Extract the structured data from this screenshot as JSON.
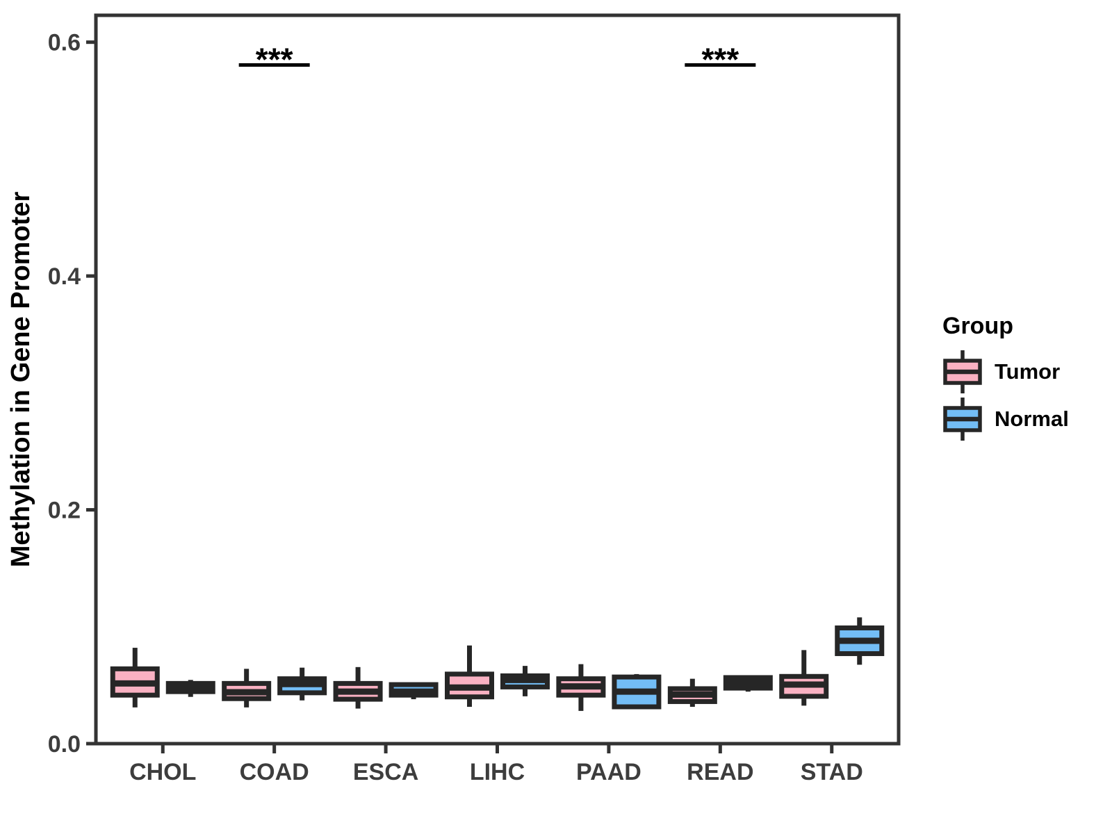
{
  "figure": {
    "background": "#ffffff"
  },
  "legend": {
    "title": "Group",
    "entries": [
      {
        "label": "Tumor",
        "color": "#F9B1C2"
      },
      {
        "label": "Normal",
        "color": "#73BDF5"
      }
    ]
  },
  "chart_data": {
    "type": "box",
    "title": "",
    "xlabel": "",
    "ylabel": "Methylation in Gene Promoter",
    "categories": [
      "CHOL",
      "COAD",
      "ESCA",
      "LIHC",
      "PAAD",
      "READ",
      "STAD"
    ],
    "ylim": [
      0,
      0.623
    ],
    "yticks": [
      0.0,
      0.2,
      0.4,
      0.6
    ],
    "ytick_labels": [
      "0.0",
      "0.2",
      "0.4",
      "0.6"
    ],
    "grid": false,
    "legend_position": "right",
    "series": [
      {
        "name": "Tumor",
        "color": "#F9B1C2",
        "boxes": [
          {
            "category": "CHOL",
            "low": 0.031,
            "q1": 0.0415,
            "median": 0.0515,
            "q3": 0.064,
            "high": 0.082
          },
          {
            "category": "COAD",
            "low": 0.031,
            "q1": 0.0385,
            "median": 0.044,
            "q3": 0.0515,
            "high": 0.064
          },
          {
            "category": "ESCA",
            "low": 0.03,
            "q1": 0.038,
            "median": 0.0445,
            "q3": 0.0515,
            "high": 0.0655
          },
          {
            "category": "LIHC",
            "low": 0.0315,
            "q1": 0.04,
            "median": 0.048,
            "q3": 0.0595,
            "high": 0.084
          },
          {
            "category": "PAAD",
            "low": 0.028,
            "q1": 0.0415,
            "median": 0.049,
            "q3": 0.0555,
            "high": 0.068
          },
          {
            "category": "READ",
            "low": 0.0315,
            "q1": 0.036,
            "median": 0.042,
            "q3": 0.047,
            "high": 0.0555
          },
          {
            "category": "STAD",
            "low": 0.0325,
            "q1": 0.0405,
            "median": 0.0505,
            "q3": 0.0575,
            "high": 0.08
          }
        ]
      },
      {
        "name": "Normal",
        "color": "#73BDF5",
        "boxes": [
          {
            "category": "CHOL",
            "low": 0.04,
            "q1": 0.0445,
            "median": 0.048,
            "q3": 0.0515,
            "high": 0.0545
          },
          {
            "category": "COAD",
            "low": 0.037,
            "q1": 0.0435,
            "median": 0.051,
            "q3": 0.0555,
            "high": 0.065
          },
          {
            "category": "ESCA",
            "low": 0.038,
            "q1": 0.0415,
            "median": 0.0445,
            "q3": 0.0505,
            "high": 0.0505
          },
          {
            "category": "LIHC",
            "low": 0.0405,
            "q1": 0.0485,
            "median": 0.0545,
            "q3": 0.058,
            "high": 0.0665
          },
          {
            "category": "PAAD",
            "low": 0.03,
            "q1": 0.0315,
            "median": 0.0445,
            "q3": 0.057,
            "high": 0.0595
          },
          {
            "category": "READ",
            "low": 0.0445,
            "q1": 0.0475,
            "median": 0.052,
            "q3": 0.0565,
            "high": 0.0565
          },
          {
            "category": "STAD",
            "low": 0.0675,
            "q1": 0.077,
            "median": 0.088,
            "q3": 0.099,
            "high": 0.108
          }
        ]
      }
    ],
    "annotations": [
      {
        "category": "COAD",
        "label": "***",
        "y": 0.5805
      },
      {
        "category": "READ",
        "label": "***",
        "y": 0.5805
      }
    ],
    "style": {
      "box_border_color": "#262626",
      "axis_color": "#333333",
      "tick_label_color": "#3d3d3d",
      "axis_title_color": "#000000"
    }
  }
}
